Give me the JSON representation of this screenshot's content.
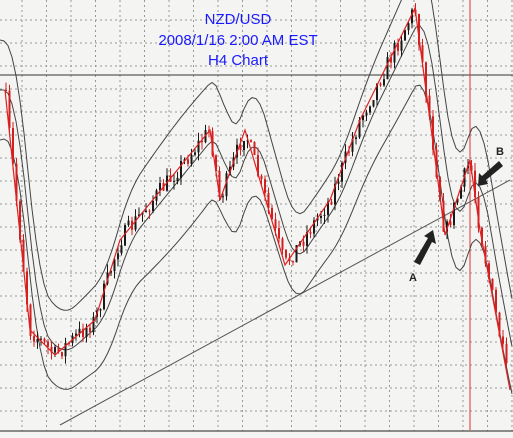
{
  "header": {
    "lines": [
      "NZD/USD",
      "2008/1/16 2:00 AM EST",
      "H4 Chart"
    ]
  },
  "annotations": {
    "a": "A",
    "b": "B"
  }
}
